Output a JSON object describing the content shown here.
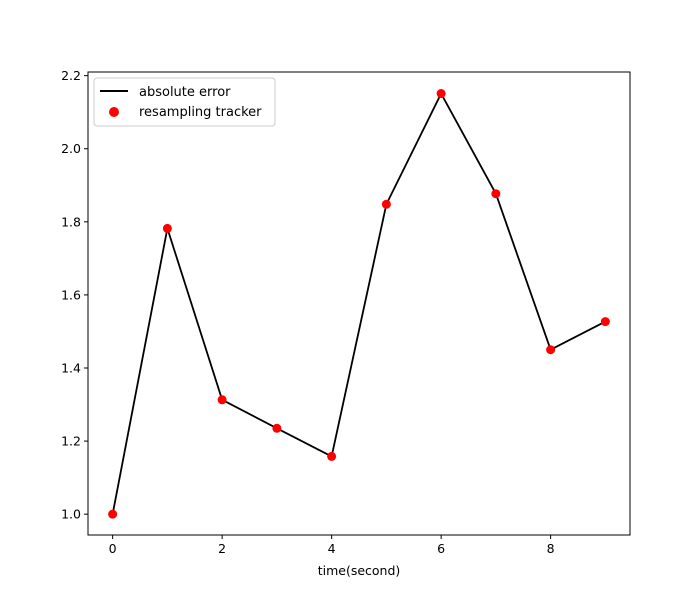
{
  "chart_data": {
    "type": "line",
    "title": "",
    "xlabel": "time(second)",
    "ylabel": "",
    "xlim": [
      -0.45,
      9.45
    ],
    "ylim": [
      0.943,
      2.21
    ],
    "x_ticks": [
      0,
      2,
      4,
      6,
      8
    ],
    "x_tick_labels": [
      "0",
      "2",
      "4",
      "6",
      "8"
    ],
    "y_ticks": [
      1.0,
      1.2,
      1.4,
      1.6,
      1.8,
      2.0,
      2.2
    ],
    "y_tick_labels": [
      "1.0",
      "1.2",
      "1.4",
      "1.6",
      "1.8",
      "2.0",
      "2.2"
    ],
    "grid": false,
    "legend_position": "top-left",
    "x": [
      0,
      1,
      2,
      3,
      4,
      5,
      6,
      7,
      8,
      9
    ],
    "series": [
      {
        "name": "absolute error",
        "kind": "line",
        "color": "#000000",
        "values": [
          1.0,
          1.782,
          1.313,
          1.235,
          1.158,
          1.848,
          2.151,
          1.877,
          1.45,
          1.527
        ]
      },
      {
        "name": "resampling tracker",
        "kind": "scatter",
        "color": "#ff0000",
        "values": [
          1.0,
          1.782,
          1.313,
          1.235,
          1.158,
          1.848,
          2.151,
          1.877,
          1.45,
          1.527
        ]
      }
    ]
  }
}
